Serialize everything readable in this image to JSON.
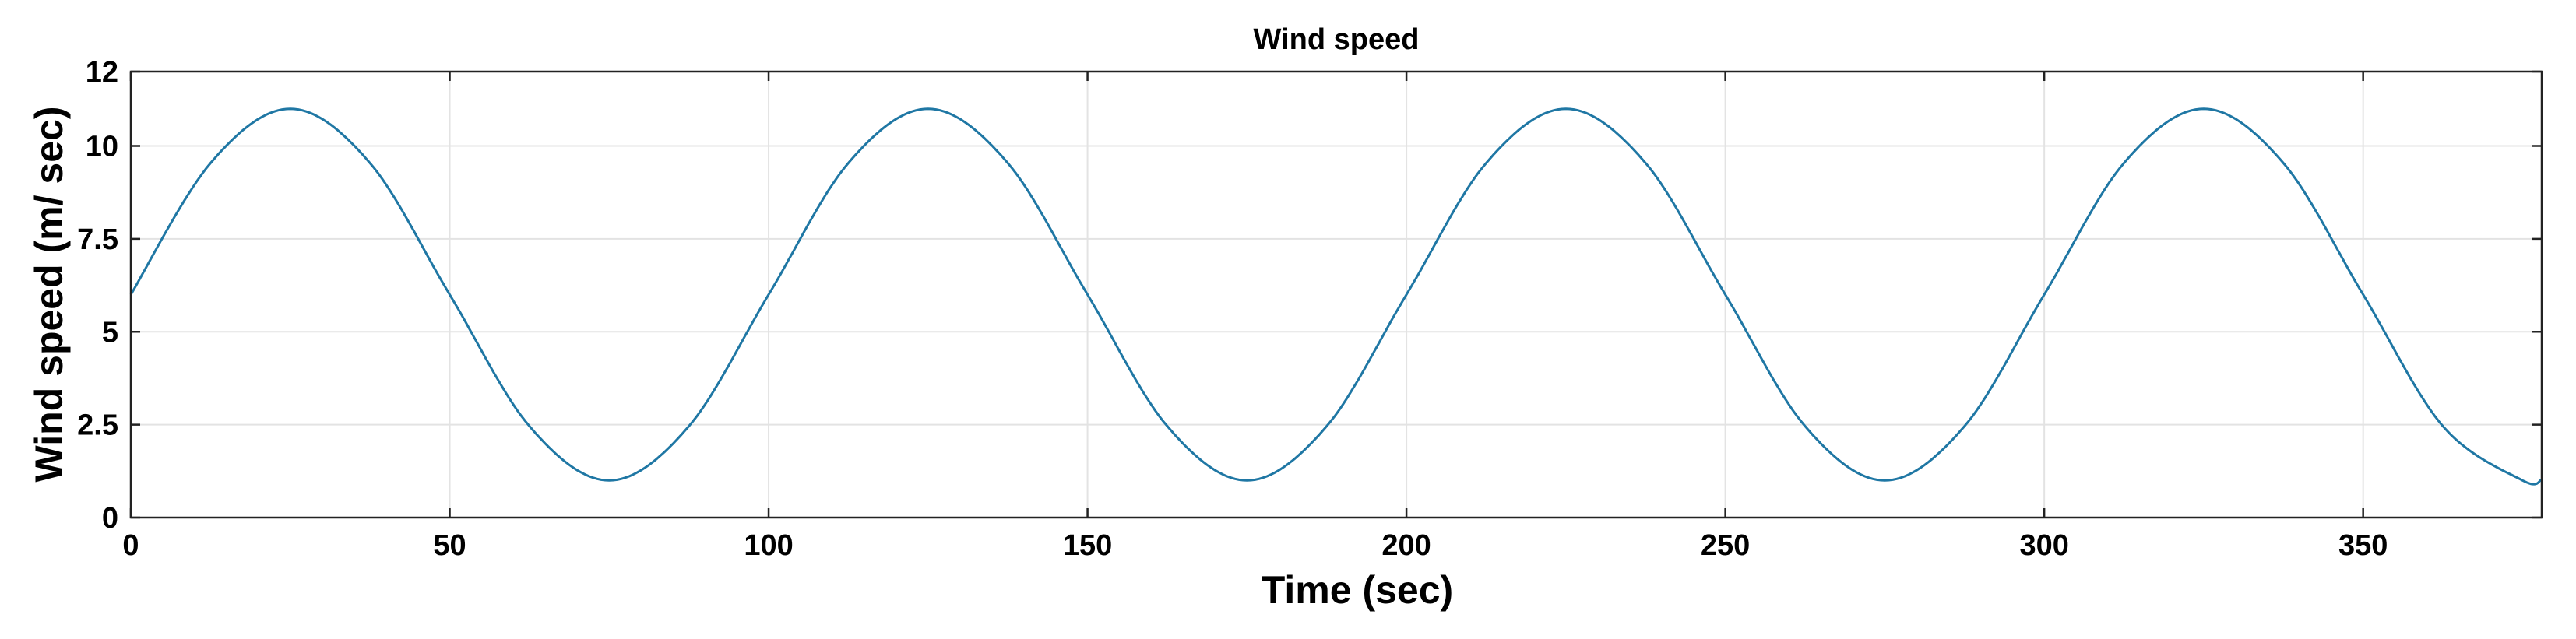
{
  "chart_data": {
    "type": "line",
    "title": "Wind speed",
    "xlabel": "Time (sec)",
    "ylabel": "Wind speed (m/ sec)",
    "xlim": [
      0,
      378
    ],
    "ylim": [
      0,
      12
    ],
    "x_ticks": [
      0,
      50,
      100,
      150,
      200,
      250,
      300,
      350
    ],
    "y_ticks": [
      0,
      2.5,
      5,
      7.5,
      10,
      12
    ],
    "y_tick_labels": [
      "0",
      "2.5",
      "5",
      "7.5",
      "10",
      "12"
    ],
    "grid": true,
    "legend": "none",
    "series": [
      {
        "color": "#1f77a4",
        "x": [
          0,
          12.5,
          25,
          37.5,
          50,
          62.5,
          75,
          87.5,
          100,
          112.5,
          125,
          137.5,
          150,
          162.5,
          175,
          187.5,
          200,
          212.5,
          225,
          237.5,
          250,
          262.5,
          275,
          287.5,
          300,
          312.5,
          325,
          337.5,
          350,
          362.5,
          375,
          378
        ],
        "y": [
          6,
          9.54,
          11,
          9.54,
          6,
          2.46,
          1,
          2.46,
          6,
          9.54,
          11,
          9.54,
          6,
          2.46,
          1,
          2.46,
          6,
          9.54,
          11,
          9.54,
          6,
          2.46,
          1,
          2.46,
          6,
          9.54,
          11,
          9.54,
          6,
          2.46,
          1,
          1.02
        ]
      }
    ]
  }
}
